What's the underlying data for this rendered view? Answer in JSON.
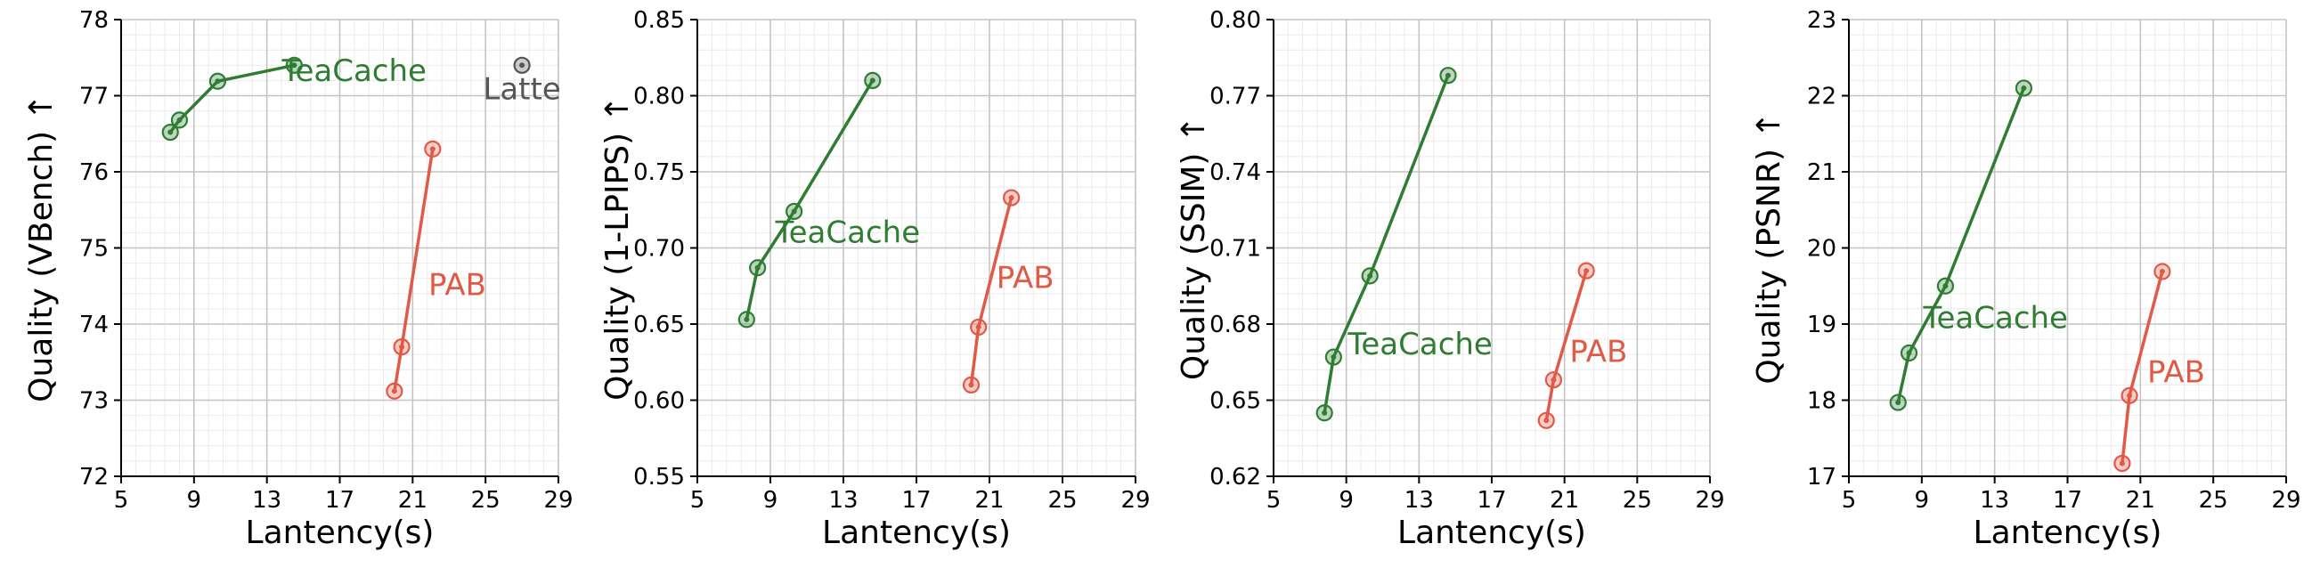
{
  "colors": {
    "teacache": "#2e7d32",
    "pab": "#e05a47",
    "latte": "#555555",
    "grid_major": "#c4c4c4",
    "grid_minor": "#ebebeb",
    "axis": "#000000"
  },
  "chart_data": [
    {
      "type": "line",
      "xlabel": "Lantency(s)",
      "ylabel": "Quality (VBench)",
      "ylabel_arrow": "↑",
      "xlim": [
        5,
        29
      ],
      "ylim": [
        72,
        78
      ],
      "xticks": [
        5,
        9,
        13,
        17,
        21,
        25,
        29
      ],
      "yticks": [
        72,
        73,
        74,
        75,
        76,
        77,
        78
      ],
      "ytick_labels": [
        "72",
        "73",
        "74",
        "75",
        "76",
        "77",
        "78"
      ],
      "series": [
        {
          "name": "TeaCache",
          "color": "#2e7d32",
          "x": [
            7.7,
            8.2,
            10.3,
            14.5
          ],
          "y": [
            76.52,
            76.68,
            77.19,
            77.4
          ]
        },
        {
          "name": "PAB",
          "color": "#e05a47",
          "x": [
            20.0,
            20.4,
            22.1
          ],
          "y": [
            73.12,
            73.7,
            76.3
          ]
        }
      ],
      "points": [
        {
          "name": "Latte",
          "color": "#555555",
          "x": [
            27.0
          ],
          "y": [
            77.4
          ]
        }
      ]
    },
    {
      "type": "line",
      "xlabel": "Lantency(s)",
      "ylabel": "Quality (1-LPIPS)",
      "ylabel_arrow": "↑",
      "xlim": [
        5,
        29
      ],
      "ylim": [
        0.55,
        0.85
      ],
      "xticks": [
        5,
        9,
        13,
        17,
        21,
        25,
        29
      ],
      "yticks": [
        0.55,
        0.6,
        0.65,
        0.7,
        0.75,
        0.8,
        0.85
      ],
      "ytick_labels": [
        "0.55",
        "0.60",
        "0.65",
        "0.70",
        "0.75",
        "0.80",
        "0.85"
      ],
      "series": [
        {
          "name": "TeaCache",
          "color": "#2e7d32",
          "x": [
            7.7,
            8.3,
            10.3,
            14.6
          ],
          "y": [
            0.653,
            0.687,
            0.724,
            0.81
          ]
        },
        {
          "name": "PAB",
          "color": "#e05a47",
          "x": [
            20.0,
            20.4,
            22.2
          ],
          "y": [
            0.61,
            0.648,
            0.733
          ]
        }
      ]
    },
    {
      "type": "line",
      "xlabel": "Lantency(s)",
      "ylabel": "Quality (SSIM)",
      "ylabel_arrow": "↑",
      "xlim": [
        5,
        29
      ],
      "ylim": [
        0.62,
        0.8
      ],
      "xticks": [
        5,
        9,
        13,
        17,
        21,
        25,
        29
      ],
      "yticks": [
        0.62,
        0.65,
        0.68,
        0.71,
        0.74,
        0.77,
        0.8
      ],
      "ytick_labels": [
        "0.62",
        "0.65",
        "0.68",
        "0.71",
        "0.74",
        "0.77",
        "0.80"
      ],
      "series": [
        {
          "name": "TeaCache",
          "color": "#2e7d32",
          "x": [
            7.8,
            8.3,
            10.3,
            14.6
          ],
          "y": [
            0.645,
            0.667,
            0.699,
            0.778
          ]
        },
        {
          "name": "PAB",
          "color": "#e05a47",
          "x": [
            20.0,
            20.4,
            22.2
          ],
          "y": [
            0.642,
            0.658,
            0.701
          ]
        }
      ]
    },
    {
      "type": "line",
      "xlabel": "Lantency(s)",
      "ylabel": "Quality (PSNR)",
      "ylabel_arrow": "↑",
      "xlim": [
        5,
        29
      ],
      "ylim": [
        17,
        23
      ],
      "xticks": [
        5,
        9,
        13,
        17,
        21,
        25,
        29
      ],
      "yticks": [
        17,
        18,
        19,
        20,
        21,
        22,
        23
      ],
      "ytick_labels": [
        "17",
        "18",
        "19",
        "20",
        "21",
        "22",
        "23"
      ],
      "series": [
        {
          "name": "TeaCache",
          "color": "#2e7d32",
          "x": [
            7.7,
            8.3,
            10.3,
            14.6
          ],
          "y": [
            17.97,
            18.62,
            19.5,
            22.1
          ]
        },
        {
          "name": "PAB",
          "color": "#e05a47",
          "x": [
            20.0,
            20.4,
            22.2
          ],
          "y": [
            17.17,
            18.06,
            19.69
          ]
        }
      ]
    }
  ]
}
